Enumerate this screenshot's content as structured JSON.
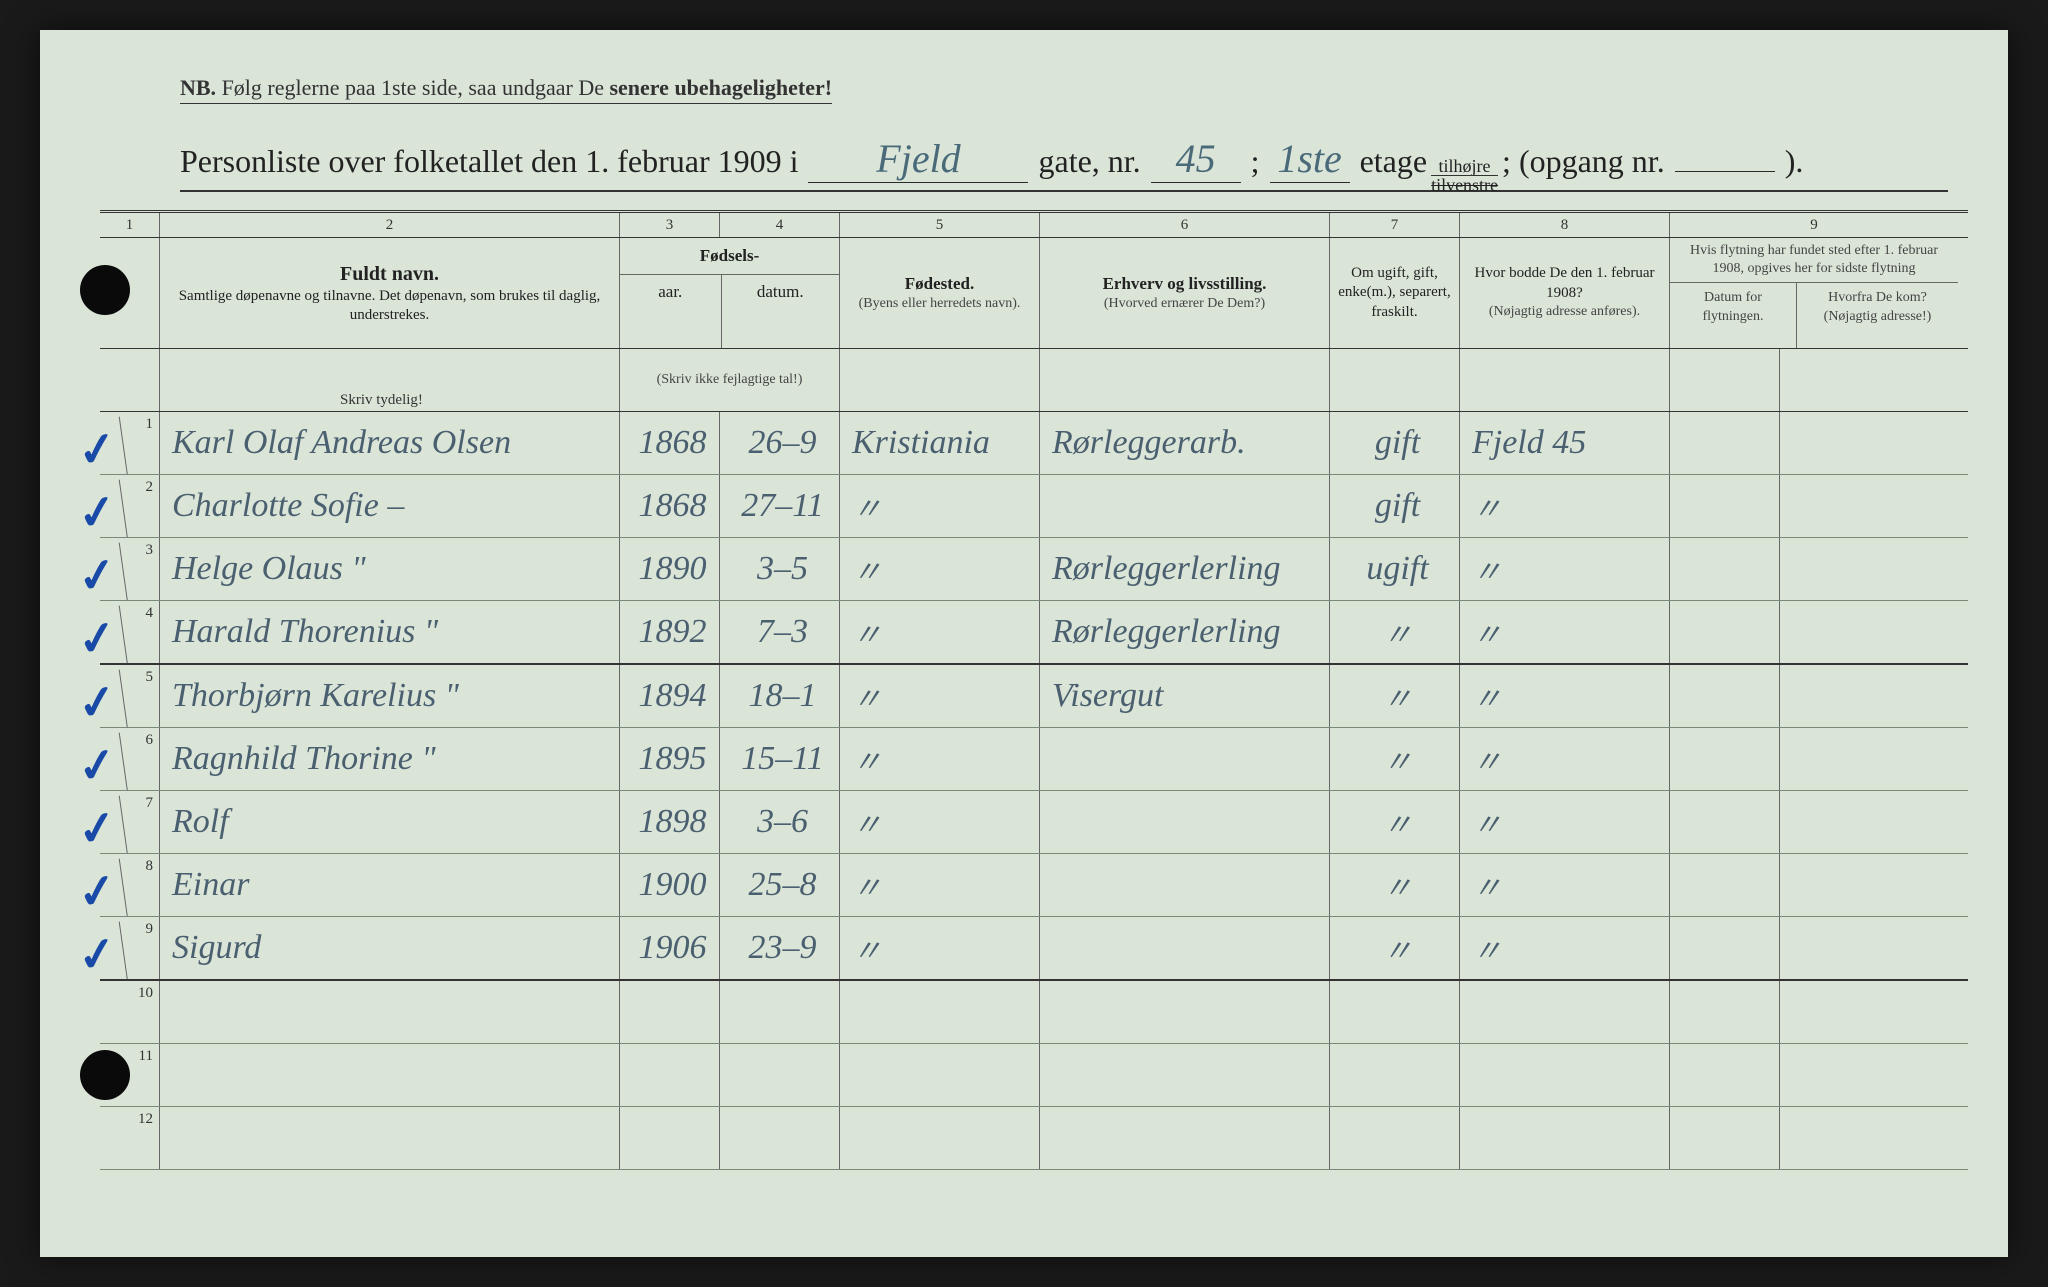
{
  "colors": {
    "page_bg": "#dae5d8",
    "ink_printed": "#333333",
    "ink_hand": "#4a5f6f",
    "check_blue": "#1a4aa8",
    "rule_line": "#666666",
    "faint_row": "#7a8a78"
  },
  "nb": {
    "nb_label": "NB.",
    "text_a": "Følg reglerne paa 1ste side, saa undgaar De ",
    "text_b": "senere ubehageligheter!"
  },
  "title": {
    "a": "Personliste over folketallet den 1. februar 1909 i",
    "gate_hand": "Fjeld",
    "b": "gate, nr.",
    "nr_hand": "45",
    "semicolon": ";",
    "etage_hand": "1ste",
    "etage": "etage",
    "side_top": "tilhøjre",
    "side_bot": "tilvenstre",
    "c": "; (opgang nr.",
    "d": ").",
    "opgang_hand": ""
  },
  "colnums": [
    "1",
    "2",
    "3",
    "4",
    "5",
    "6",
    "7",
    "8",
    "9"
  ],
  "headers": {
    "fuldt_navn": "Fuldt navn.",
    "fuldt_sub": "Samtlige døpenavne og tilnavne.  Det døpenavn, som brukes til daglig, understrekes.",
    "fodsels": "Fødsels-",
    "aar": "aar.",
    "datum": "datum.",
    "skriv_ikke": "(Skriv ikke fejlagtige tal!)",
    "fodested": "Fødested.",
    "fodested_sub": "(Byens eller herredets navn).",
    "erhverv": "Erhverv og livsstilling.",
    "erhverv_sub": "(Hvorved ernærer De Dem?)",
    "civil": "Om ugift, gift, enke(m.), separert, fraskilt.",
    "hvor1908": "Hvor bodde De den 1. februar 1908?",
    "hvor1908_sub": "(Nøjagtig adresse anføres).",
    "flytning_top": "Hvis flytning har fundet sted efter 1. februar 1908, opgives her for sidste flytning",
    "datum_flyt": "Datum for flytningen.",
    "hvorfra": "Hvorfra De kom? (Nøjagtig adresse!)",
    "skriv_tydelig": "Skriv tydelig!"
  },
  "rows": [
    {
      "n": "1",
      "check": true,
      "navn": "Karl Olaf Andreas Olsen",
      "aar": "1868",
      "datum": "26–9",
      "sted": "Kristiania",
      "erhverv": "Rørleggerarb.",
      "civil": "gift",
      "hvor": "Fjeld 45",
      "flyt": "",
      "fra": ""
    },
    {
      "n": "2",
      "check": true,
      "navn": "Charlotte Sofie    –",
      "aar": "1868",
      "datum": "27–11",
      "sted": "\"",
      "erhverv": "",
      "civil": "gift",
      "hvor": "\"",
      "flyt": "",
      "fra": ""
    },
    {
      "n": "3",
      "check": true,
      "navn": "Helge Olaus        \"",
      "aar": "1890",
      "datum": "3–5",
      "sted": "\"",
      "erhverv": "Rørleggerlerling",
      "civil": "ugift",
      "hvor": "\"",
      "flyt": "",
      "fra": ""
    },
    {
      "n": "4",
      "check": true,
      "navn": "Harald Thorenius   \"",
      "aar": "1892",
      "datum": "7–3",
      "sted": "\"",
      "erhverv": "Rørleggerlerling",
      "civil": "\"",
      "hvor": "\"",
      "flyt": "",
      "fra": ""
    },
    {
      "n": "5",
      "check": true,
      "navn": "Thorbjørn Karelius \"",
      "aar": "1894",
      "datum": "18–1",
      "sted": "\"",
      "erhverv": "Visergut",
      "civil": "\"",
      "hvor": "\"",
      "flyt": "",
      "fra": ""
    },
    {
      "n": "6",
      "check": true,
      "navn": "Ragnhild Thorine   \"",
      "aar": "1895",
      "datum": "15–11",
      "sted": "\"",
      "erhverv": "",
      "civil": "\"",
      "hvor": "\"",
      "flyt": "",
      "fra": ""
    },
    {
      "n": "7",
      "check": true,
      "navn": "Rolf",
      "aar": "1898",
      "datum": "3–6",
      "sted": "\"",
      "erhverv": "",
      "civil": "\"",
      "hvor": "\"",
      "flyt": "",
      "fra": ""
    },
    {
      "n": "8",
      "check": true,
      "navn": "Einar",
      "aar": "1900",
      "datum": "25–8",
      "sted": "\"",
      "erhverv": "",
      "civil": "\"",
      "hvor": "\"",
      "flyt": "",
      "fra": ""
    },
    {
      "n": "9",
      "check": true,
      "navn": "Sigurd",
      "aar": "1906",
      "datum": "23–9",
      "sted": "\"",
      "erhverv": "",
      "civil": "\"",
      "hvor": "\"",
      "flyt": "",
      "fra": ""
    },
    {
      "n": "10",
      "check": false,
      "navn": "",
      "aar": "",
      "datum": "",
      "sted": "",
      "erhverv": "",
      "civil": "",
      "hvor": "",
      "flyt": "",
      "fra": ""
    },
    {
      "n": "11",
      "check": false,
      "navn": "",
      "aar": "",
      "datum": "",
      "sted": "",
      "erhverv": "",
      "civil": "",
      "hvor": "",
      "flyt": "",
      "fra": ""
    },
    {
      "n": "12",
      "check": false,
      "navn": "",
      "aar": "",
      "datum": "",
      "sted": "",
      "erhverv": "",
      "civil": "",
      "hvor": "",
      "flyt": "",
      "fra": ""
    }
  ]
}
